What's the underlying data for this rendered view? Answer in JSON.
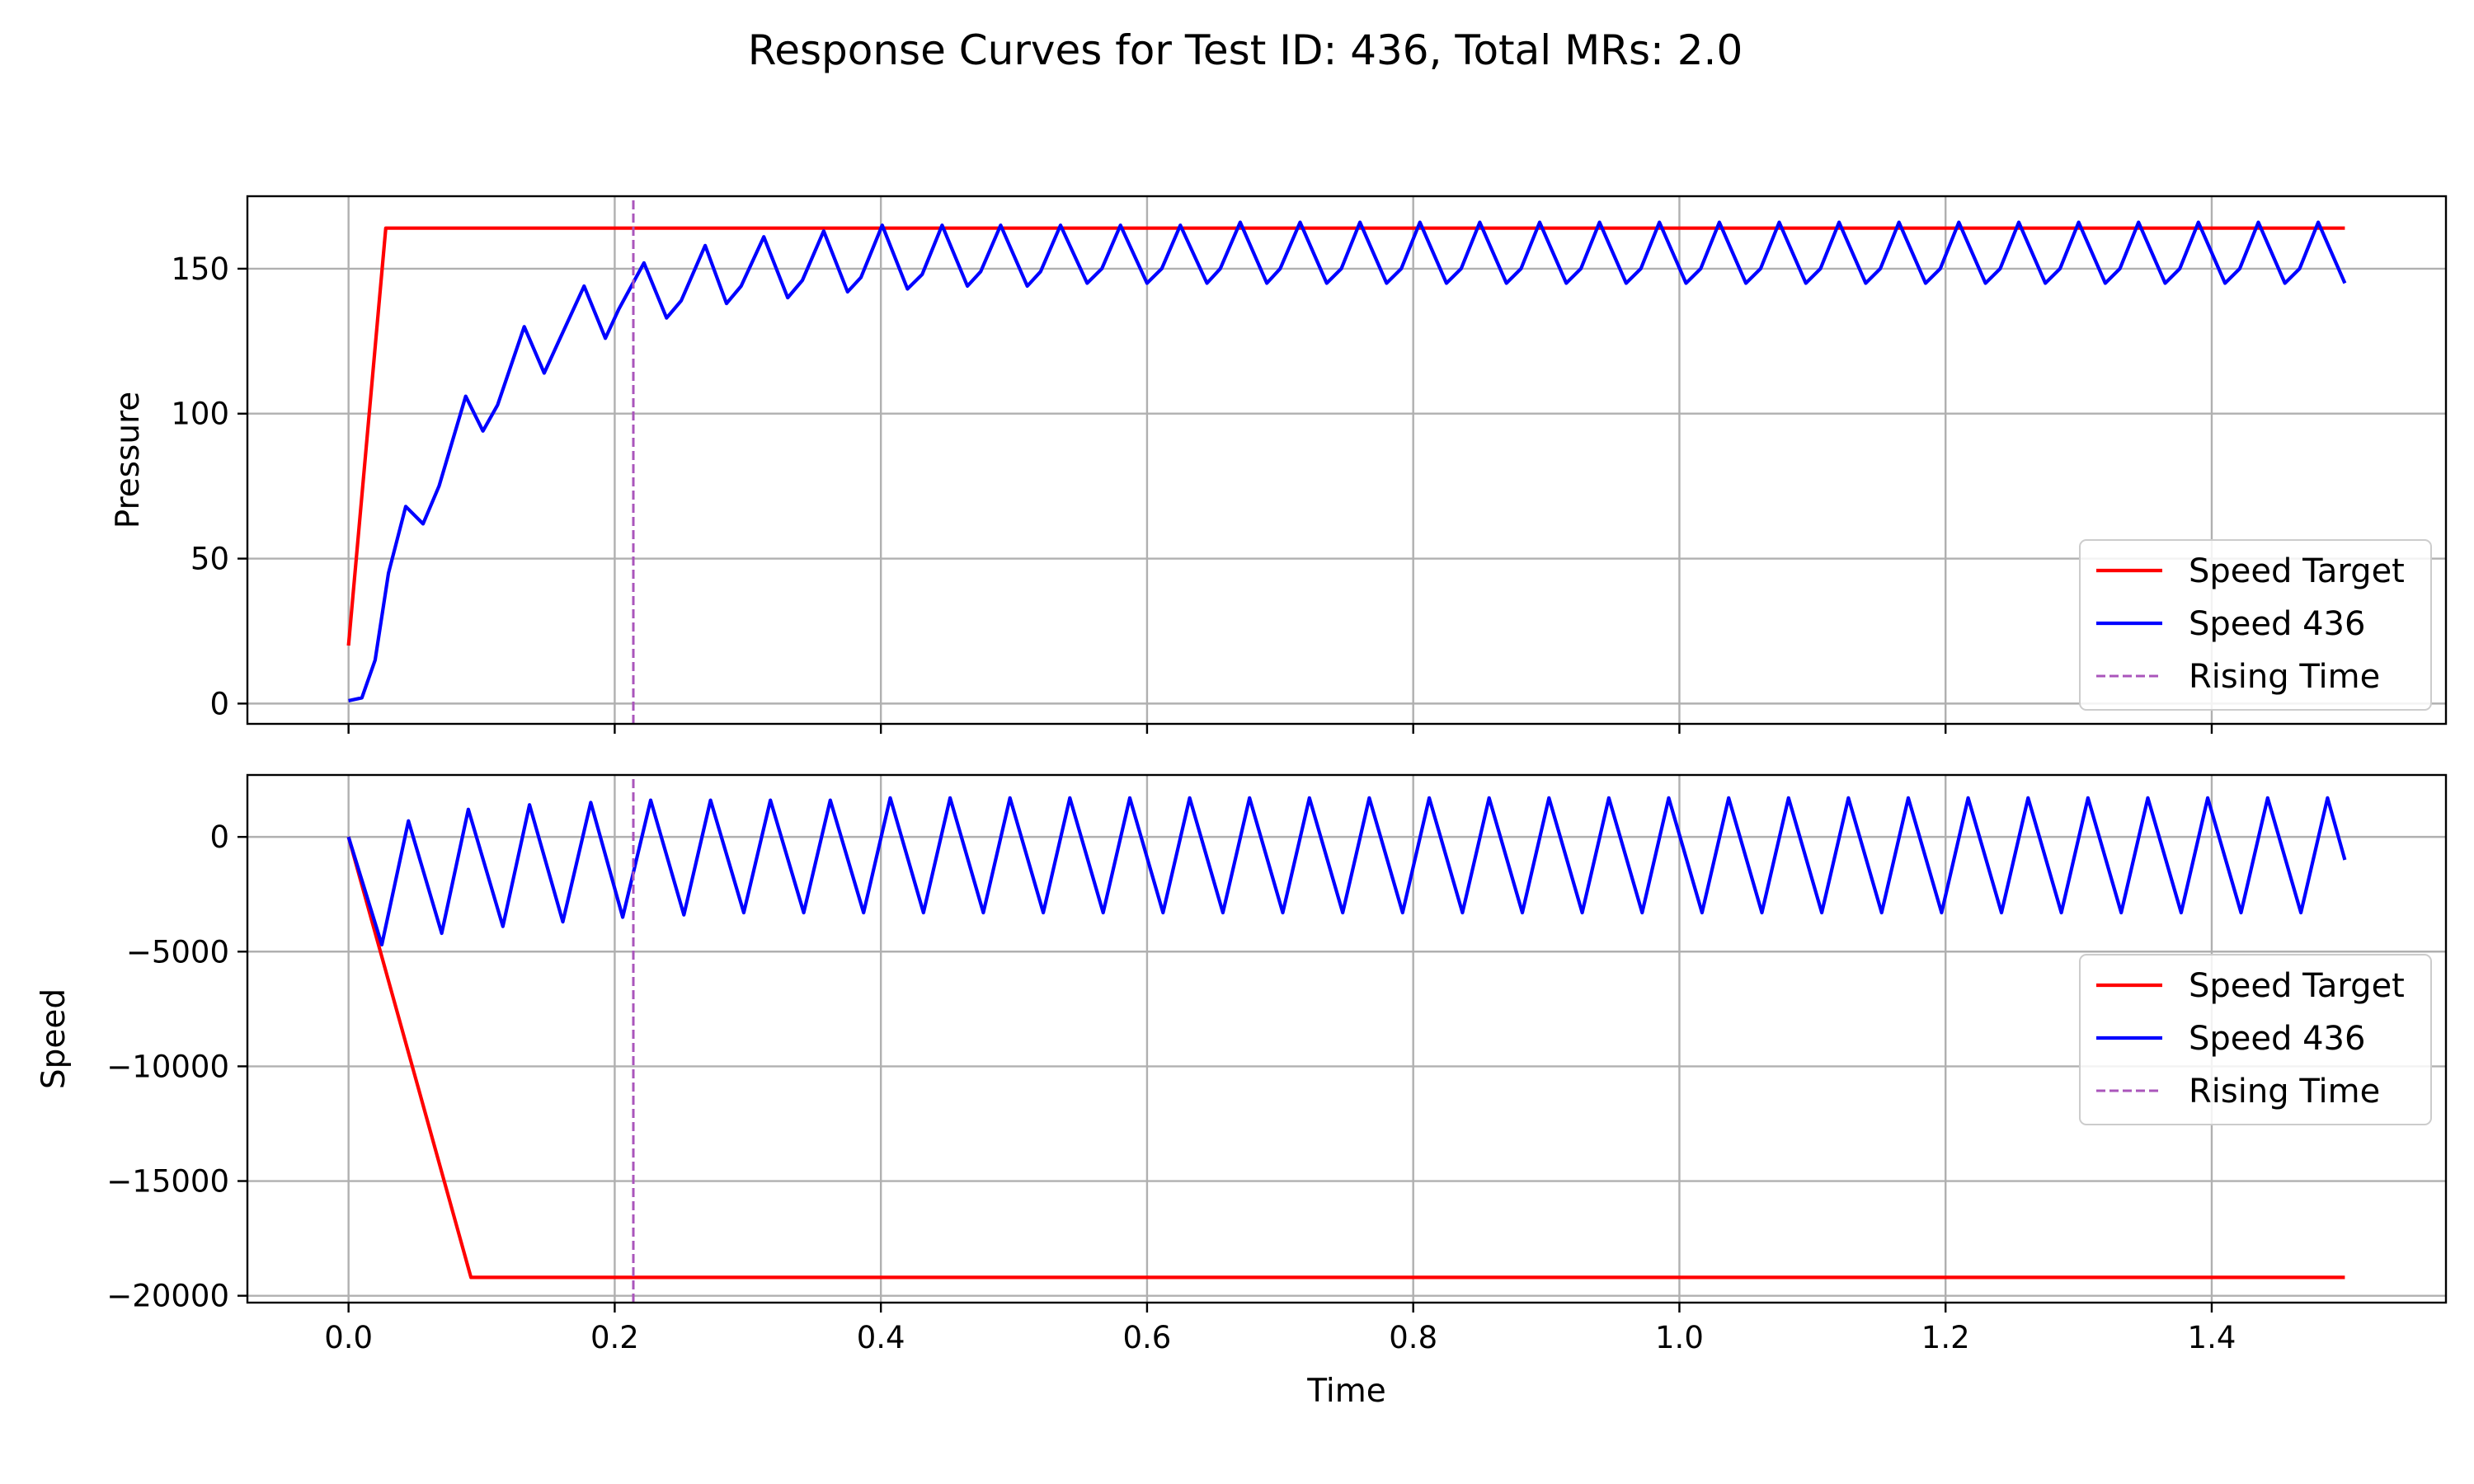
{
  "figure": {
    "title": "Response Curves for Test ID: 436, Total MRs: 2.0"
  },
  "chart_data": [
    {
      "type": "line",
      "id": "pressure",
      "ylabel": "Pressure",
      "xlabel": "",
      "xlim": [
        -0.076,
        1.576
      ],
      "ylim": [
        -7,
        175
      ],
      "x_ticks": [
        0.0,
        0.2,
        0.4,
        0.6,
        0.8,
        1.0,
        1.2,
        1.4
      ],
      "y_ticks": [
        0,
        50,
        100,
        150
      ],
      "y_tick_labels": [
        "0",
        "50",
        "100",
        "150"
      ],
      "grid": true,
      "legend": {
        "placement": "lower-right",
        "entries": [
          "Speed Target",
          "Speed 436",
          "Rising Time"
        ]
      },
      "series": [
        {
          "name": "Speed Target",
          "color": "#ff0000",
          "style": "solid",
          "x": [
            0.0,
            0.028,
            1.5
          ],
          "y": [
            20,
            164,
            164
          ]
        },
        {
          "name": "Speed 436",
          "color": "#0000ff",
          "style": "solid",
          "x": [
            0.0,
            0.01,
            0.02,
            0.03,
            0.043,
            0.056,
            0.068,
            0.088,
            0.101,
            0.112,
            0.132,
            0.147,
            0.158,
            0.177,
            0.193,
            0.203,
            0.222,
            0.239,
            0.25,
            0.268,
            0.284,
            0.295,
            0.312,
            0.33,
            0.341,
            0.357,
            0.375,
            0.385,
            0.401,
            0.42,
            0.431,
            0.446,
            0.465,
            0.475,
            0.49,
            0.51,
            0.52,
            0.535,
            0.555,
            0.566,
            0.58,
            0.6,
            0.611,
            0.625,
            0.645,
            0.655,
            0.67,
            0.69,
            0.7,
            0.715,
            0.735,
            0.746,
            0.76,
            0.78,
            0.791,
            0.805,
            0.825,
            0.836,
            0.85,
            0.87,
            0.881,
            0.895,
            0.915,
            0.926,
            0.94,
            0.96,
            0.971,
            0.985,
            1.005,
            1.016,
            1.03,
            1.05,
            1.061,
            1.075,
            1.095,
            1.106,
            1.12,
            1.14,
            1.151,
            1.165,
            1.185,
            1.196,
            1.21,
            1.23,
            1.241,
            1.255,
            1.275,
            1.286,
            1.3,
            1.32,
            1.331,
            1.345,
            1.365,
            1.376,
            1.39,
            1.41,
            1.421,
            1.435,
            1.455,
            1.466,
            1.48,
            1.5
          ],
          "y": [
            1,
            2,
            15,
            45,
            68,
            62,
            75,
            106,
            94,
            103,
            130,
            114,
            125,
            144,
            126,
            136,
            152,
            133,
            139,
            158,
            138,
            144,
            161,
            140,
            146,
            163,
            142,
            147,
            165,
            143,
            148,
            165,
            144,
            149,
            165,
            144,
            149,
            165,
            145,
            150,
            165,
            145,
            150,
            165,
            145,
            150,
            166,
            145,
            150,
            166,
            145,
            150,
            166,
            145,
            150,
            166,
            145,
            150,
            166,
            145,
            150,
            166,
            145,
            150,
            166,
            145,
            150,
            166,
            145,
            150,
            166,
            145,
            150,
            166,
            145,
            150,
            166,
            145,
            150,
            166,
            145,
            150,
            166,
            145,
            150,
            166,
            145,
            150,
            166,
            145,
            150,
            166,
            145,
            150,
            166,
            145,
            150,
            166,
            145,
            150,
            166,
            145
          ]
        },
        {
          "name": "Rising Time",
          "color": "#aa55bb",
          "style": "dashed",
          "x": [
            0.214,
            0.214
          ],
          "y": [
            -7,
            175
          ]
        }
      ]
    },
    {
      "type": "line",
      "id": "speed",
      "ylabel": "Speed",
      "xlabel": "Time",
      "xlim": [
        -0.076,
        1.576
      ],
      "ylim": [
        -20300,
        2700
      ],
      "x_ticks": [
        0.0,
        0.2,
        0.4,
        0.6,
        0.8,
        1.0,
        1.2,
        1.4
      ],
      "x_tick_labels": [
        "0.0",
        "0.2",
        "0.4",
        "0.6",
        "0.8",
        "1.0",
        "1.2",
        "1.4"
      ],
      "y_ticks": [
        0,
        -5000,
        -10000,
        -15000,
        -20000
      ],
      "y_tick_labels": [
        "0",
        "−5000",
        "−10000",
        "−15000",
        "−20000"
      ],
      "grid": true,
      "legend": {
        "placement": "center-right",
        "entries": [
          "Speed Target",
          "Speed 436",
          "Rising Time"
        ]
      },
      "series": [
        {
          "name": "Speed Target",
          "color": "#ff0000",
          "style": "solid",
          "x": [
            0.0,
            0.092,
            1.5
          ],
          "y": [
            0,
            -19200,
            -19200
          ]
        },
        {
          "name": "Speed 436",
          "color": "#0000ff",
          "style": "solid",
          "x": [
            0.0,
            0.025,
            0.045,
            0.07,
            0.09,
            0.116,
            0.136,
            0.161,
            0.182,
            0.206,
            0.227,
            0.252,
            0.272,
            0.297,
            0.317,
            0.342,
            0.362,
            0.387,
            0.407,
            0.432,
            0.452,
            0.477,
            0.497,
            0.522,
            0.542,
            0.567,
            0.587,
            0.612,
            0.632,
            0.657,
            0.677,
            0.702,
            0.722,
            0.747,
            0.767,
            0.792,
            0.812,
            0.837,
            0.857,
            0.882,
            0.902,
            0.927,
            0.947,
            0.972,
            0.992,
            1.017,
            1.037,
            1.062,
            1.082,
            1.107,
            1.127,
            1.152,
            1.172,
            1.197,
            1.217,
            1.242,
            1.262,
            1.287,
            1.307,
            1.332,
            1.352,
            1.377,
            1.397,
            1.422,
            1.442,
            1.467,
            1.487,
            1.5
          ],
          "y": [
            0,
            -4700,
            700,
            -4200,
            1200,
            -3900,
            1400,
            -3700,
            1500,
            -3500,
            1600,
            -3400,
            1600,
            -3300,
            1600,
            -3300,
            1600,
            -3300,
            1700,
            -3300,
            1700,
            -3300,
            1700,
            -3300,
            1700,
            -3300,
            1700,
            -3300,
            1700,
            -3300,
            1700,
            -3300,
            1700,
            -3300,
            1700,
            -3300,
            1700,
            -3300,
            1700,
            -3300,
            1700,
            -3300,
            1700,
            -3300,
            1700,
            -3300,
            1700,
            -3300,
            1700,
            -3300,
            1700,
            -3300,
            1700,
            -3300,
            1700,
            -3300,
            1700,
            -3300,
            1700,
            -3300,
            1700,
            -3300,
            1700,
            -3300,
            1700,
            -3300,
            1700,
            -1000
          ]
        },
        {
          "name": "Rising Time",
          "color": "#aa55bb",
          "style": "dashed",
          "x": [
            0.214,
            0.214
          ],
          "y": [
            -20300,
            2700
          ]
        }
      ]
    }
  ]
}
